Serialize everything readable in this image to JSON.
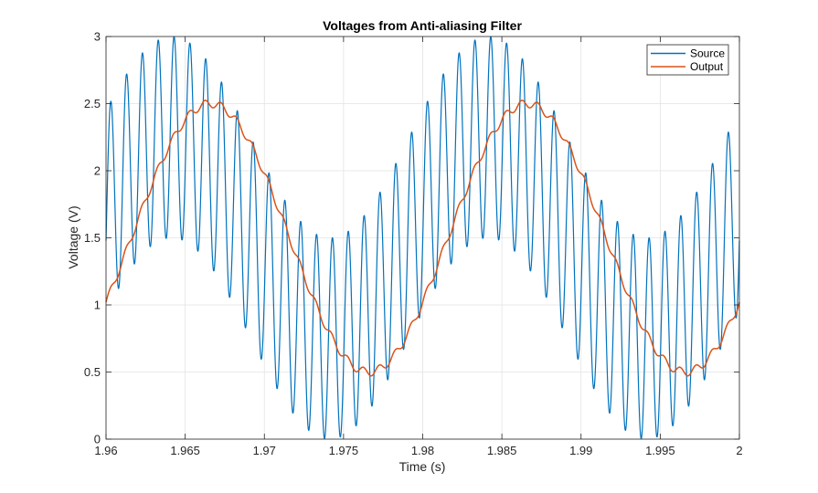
{
  "chart_data": {
    "type": "line",
    "title": "Voltages from Anti-aliasing Filter",
    "xlabel": "Time (s)",
    "ylabel": "Voltage (V)",
    "xlim": [
      1.96,
      2.0
    ],
    "ylim": [
      0,
      3
    ],
    "grid": true,
    "legend_position": "top-right",
    "x_ticks": [
      1.96,
      1.965,
      1.97,
      1.975,
      1.98,
      1.985,
      1.99,
      1.995,
      2.0
    ],
    "x_tick_labels": [
      "1.96",
      "1.965",
      "1.97",
      "1.975",
      "1.98",
      "1.985",
      "1.99",
      "1.995",
      "2"
    ],
    "y_ticks": [
      0,
      0.5,
      1,
      1.5,
      2,
      2.5,
      3
    ],
    "y_tick_labels": [
      "0",
      "0.5",
      "1",
      "1.5",
      "2",
      "2.5",
      "3"
    ],
    "series": [
      {
        "name": "Source",
        "color": "#0072BD",
        "description": "1.5 + 0.75·sin(2π·50·(t−1.96)+φ) + 0.75·sin(2π·1000·(t−1.96)+ψ)",
        "offset": 1.5,
        "low_amplitude": 0.75,
        "low_frequency_hz": 50,
        "low_phase_rad": 0.27,
        "high_amplitude": 0.75,
        "high_frequency_hz": 1000,
        "high_phase_rad": -0.3
      },
      {
        "name": "Output",
        "color": "#D95319",
        "description": "Filtered output ≈ 1.5 + 1.0·sin(2π·50·(t−1.96)−0.5) with small residual ripple",
        "offset": 1.5,
        "low_amplitude": 1.0,
        "low_frequency_hz": 50,
        "low_phase_rad": -0.5,
        "ripple_amplitude": 0.03,
        "ripple_frequency_hz": 1000
      }
    ]
  }
}
